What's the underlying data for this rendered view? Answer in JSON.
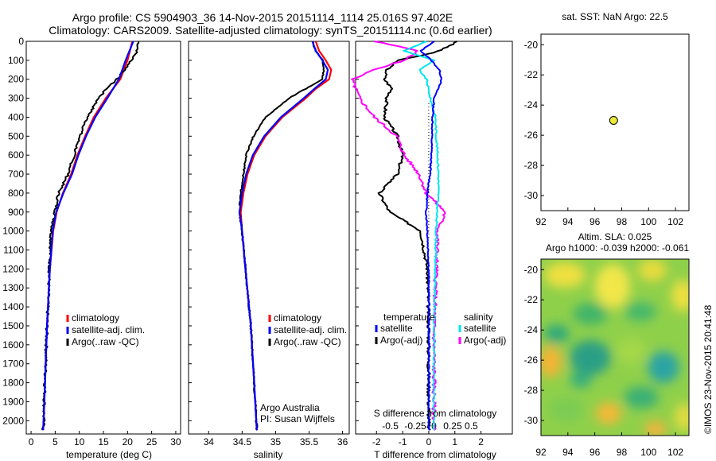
{
  "header": {
    "line1": "Argo profile: CS 5904903_36 14-Nov-2015 20151114_1114 25.016S 97.402E",
    "line2": "Climatology: CARS2009. Satellite-adjusted climatology: synTS_20151114.nc (0.6d earlier)"
  },
  "colors": {
    "climatology": "#ff0000",
    "satellite": "#0000ff",
    "argo": "#000000",
    "satellite_diff": "#00e5ee",
    "argo_salt_diff": "#ff00ff"
  },
  "chart_data": [
    {
      "type": "line",
      "panel": "temperature",
      "xlabel": "temperature (deg C)",
      "ylabel": "",
      "xlim": [
        -1,
        31
      ],
      "ylim": [
        2070,
        0
      ],
      "xticks": [
        0,
        5,
        10,
        15,
        20,
        25,
        30
      ],
      "yticks": [
        0,
        100,
        200,
        300,
        400,
        500,
        600,
        700,
        800,
        900,
        1000,
        1100,
        1200,
        1300,
        1400,
        1500,
        1600,
        1700,
        1800,
        1900,
        2000
      ],
      "legend": [
        "climatology",
        "satellite-adj. clim.",
        "Argo(..raw -QC)"
      ],
      "series": [
        {
          "name": "climatology",
          "depth": [
            0,
            100,
            200,
            300,
            400,
            500,
            600,
            700,
            800,
            900,
            1000,
            1200,
            1500,
            1800,
            2000,
            2050
          ],
          "values": [
            21,
            20,
            18.5,
            15.5,
            13,
            11.2,
            9.6,
            8.3,
            6.6,
            5.3,
            4.6,
            3.9,
            3.3,
            2.9,
            2.6,
            2.5
          ]
        },
        {
          "name": "satellite-adj. clim.",
          "depth": [
            0,
            100,
            200,
            300,
            400,
            500,
            600,
            700,
            800,
            900,
            1000,
            1200,
            1500,
            1800,
            2000,
            2050
          ],
          "values": [
            21.2,
            19.6,
            18.2,
            15.8,
            13.3,
            11.4,
            9.8,
            8.5,
            6.7,
            5.2,
            4.5,
            3.9,
            3.3,
            2.9,
            2.6,
            2.5
          ]
        },
        {
          "name": "Argo(..raw -QC)",
          "depth": [
            0,
            50,
            100,
            150,
            200,
            250,
            300,
            400,
            500,
            600,
            700,
            800,
            900,
            1000,
            1200,
            1500,
            1800,
            2000,
            2050
          ],
          "values": [
            22.3,
            22.0,
            20.8,
            19.5,
            17.8,
            15.6,
            14.0,
            11.7,
            10.1,
            8.9,
            7.7,
            5.7,
            5.0,
            4.2,
            3.8,
            3.3,
            2.9,
            2.6,
            2.5
          ]
        }
      ]
    },
    {
      "type": "line",
      "panel": "salinity",
      "xlabel": "salinity",
      "xlim": [
        33.7,
        36.1
      ],
      "ylim": [
        2070,
        0
      ],
      "xticks": [
        34,
        34.5,
        35,
        35.5,
        36
      ],
      "xtick_labels": [
        "34",
        "34.5",
        "35",
        "35.5",
        "36"
      ],
      "legend": [
        "climatology",
        "satellite-adj. clim.",
        "Argo(..raw -QC)"
      ],
      "annotation": [
        "Argo Australia",
        "PI: Susan Wijffels"
      ],
      "series": [
        {
          "name": "climatology",
          "depth": [
            0,
            50,
            100,
            150,
            200,
            250,
            300,
            400,
            500,
            600,
            700,
            800,
            900,
            1000,
            1200,
            1500,
            1800,
            2050
          ],
          "values": [
            35.6,
            35.65,
            35.75,
            35.83,
            35.8,
            35.6,
            35.45,
            35.1,
            34.85,
            34.68,
            34.58,
            34.52,
            34.48,
            34.5,
            34.55,
            34.63,
            34.68,
            34.72
          ]
        },
        {
          "name": "satellite-adj. clim.",
          "depth": [
            0,
            50,
            100,
            150,
            200,
            250,
            300,
            400,
            500,
            600,
            700,
            800,
            900,
            1000,
            1200,
            1500,
            1800,
            2050
          ],
          "values": [
            35.55,
            35.6,
            35.7,
            35.78,
            35.75,
            35.58,
            35.42,
            35.08,
            34.83,
            34.66,
            34.56,
            34.5,
            34.46,
            34.5,
            34.55,
            34.63,
            34.68,
            34.72
          ]
        },
        {
          "name": "Argo(..raw -QC)",
          "depth": [
            0,
            50,
            100,
            150,
            200,
            250,
            300,
            400,
            500,
            600,
            700,
            800,
            900,
            1000,
            1200,
            1500,
            1800,
            2050
          ],
          "values": [
            35.55,
            35.6,
            35.7,
            35.72,
            35.7,
            35.45,
            35.2,
            34.85,
            34.67,
            34.56,
            34.52,
            34.48,
            34.46,
            34.5,
            34.55,
            34.63,
            34.68,
            34.72
          ]
        }
      ]
    },
    {
      "type": "line",
      "panel": "difference",
      "xlabel": "T difference from climatology",
      "xlabel2": "S difference from climatology",
      "xlim": [
        -2.8,
        3.2
      ],
      "ylim": [
        2070,
        0
      ],
      "xticks": [
        -2,
        -1,
        0,
        1,
        2
      ],
      "xtick_labels": [
        "-2",
        "-1",
        "0",
        "1",
        "2"
      ],
      "sticks": [
        -0.5,
        -0.25,
        0,
        0.25,
        0.5
      ],
      "stick_labels": [
        "-0.5",
        "-0.25",
        "0",
        "0.25",
        "0.5"
      ],
      "legend_titles": [
        "temperature",
        "salinity"
      ],
      "legend": [
        "satellite",
        "Argo(-adj)",
        "satellite",
        "Argo(-adj)"
      ],
      "series": [
        {
          "name": "satellite",
          "depth": [
            0,
            50,
            100,
            150,
            200,
            250,
            300,
            400,
            500,
            600,
            700,
            800,
            900,
            1000,
            1200,
            1500,
            2000,
            2050
          ],
          "values": [
            0.2,
            -0.3,
            0.1,
            0.4,
            0.5,
            0.35,
            0.2,
            0.15,
            0.12,
            0.1,
            0.05,
            -0.05,
            -0.1,
            -0.05,
            0,
            0,
            0,
            0
          ]
        },
        {
          "name": "Argo(-adj)",
          "depth": [
            0,
            30,
            60,
            100,
            150,
            200,
            250,
            300,
            400,
            500,
            600,
            700,
            800,
            900,
            1000,
            1200,
            1500,
            1800,
            2050
          ],
          "values": [
            1.1,
            0.7,
            0.2,
            -1.2,
            -1.6,
            -1.7,
            -1.4,
            -1.6,
            -1.7,
            -1.2,
            -1.0,
            -1.2,
            -1.9,
            -1.5,
            -0.3,
            -0.05,
            0,
            0,
            0
          ]
        },
        {
          "name": "satellite",
          "depth": [
            0,
            50,
            100,
            150,
            200,
            300,
            400,
            500,
            600,
            700,
            800,
            900,
            1000,
            1500,
            2050
          ],
          "values": [
            -0.1,
            -0.4,
            0,
            -0.2,
            -0.1,
            -0.05,
            0.02,
            0.03,
            0.05,
            0.06,
            0.06,
            0.04,
            0.03,
            0,
            0
          ]
        },
        {
          "name": "Argo(-adj)",
          "depth": [
            0,
            50,
            100,
            150,
            200,
            300,
            400,
            500,
            600,
            700,
            800,
            900,
            1000,
            1500,
            2050
          ],
          "values": [
            -0.8,
            -0.2,
            -0.4,
            -0.8,
            -1.1,
            -1.0,
            -0.8,
            -0.5,
            -0.4,
            -0.2,
            -0.1,
            0.15,
            0.05,
            0,
            0
          ]
        }
      ]
    },
    {
      "type": "scatter",
      "panel": "location",
      "title": "sat. SST: NaN Argo: 22.5",
      "xlim": [
        92,
        103
      ],
      "ylim": [
        -31,
        -19.3
      ],
      "xticks": [
        92,
        94,
        96,
        98,
        100,
        102
      ],
      "yticks": [
        -20,
        -22,
        -24,
        -26,
        -28,
        -30
      ],
      "points": [
        {
          "lon": 97.4,
          "lat": -25.016
        }
      ]
    },
    {
      "type": "heatmap",
      "panel": "altimetry",
      "title": "Altim. SLA: 0.025",
      "subtitle": "Argo h1000: -0.039 h2000: -0.061",
      "xlim": [
        92,
        103
      ],
      "ylim": [
        -31,
        -19.3
      ],
      "xticks": [
        92,
        94,
        96,
        98,
        100,
        102
      ],
      "yticks": [
        -20,
        -22,
        -24,
        -26,
        -28,
        -30
      ]
    }
  ],
  "credit": "©IMOS 23-Nov-2015 20:41:48"
}
